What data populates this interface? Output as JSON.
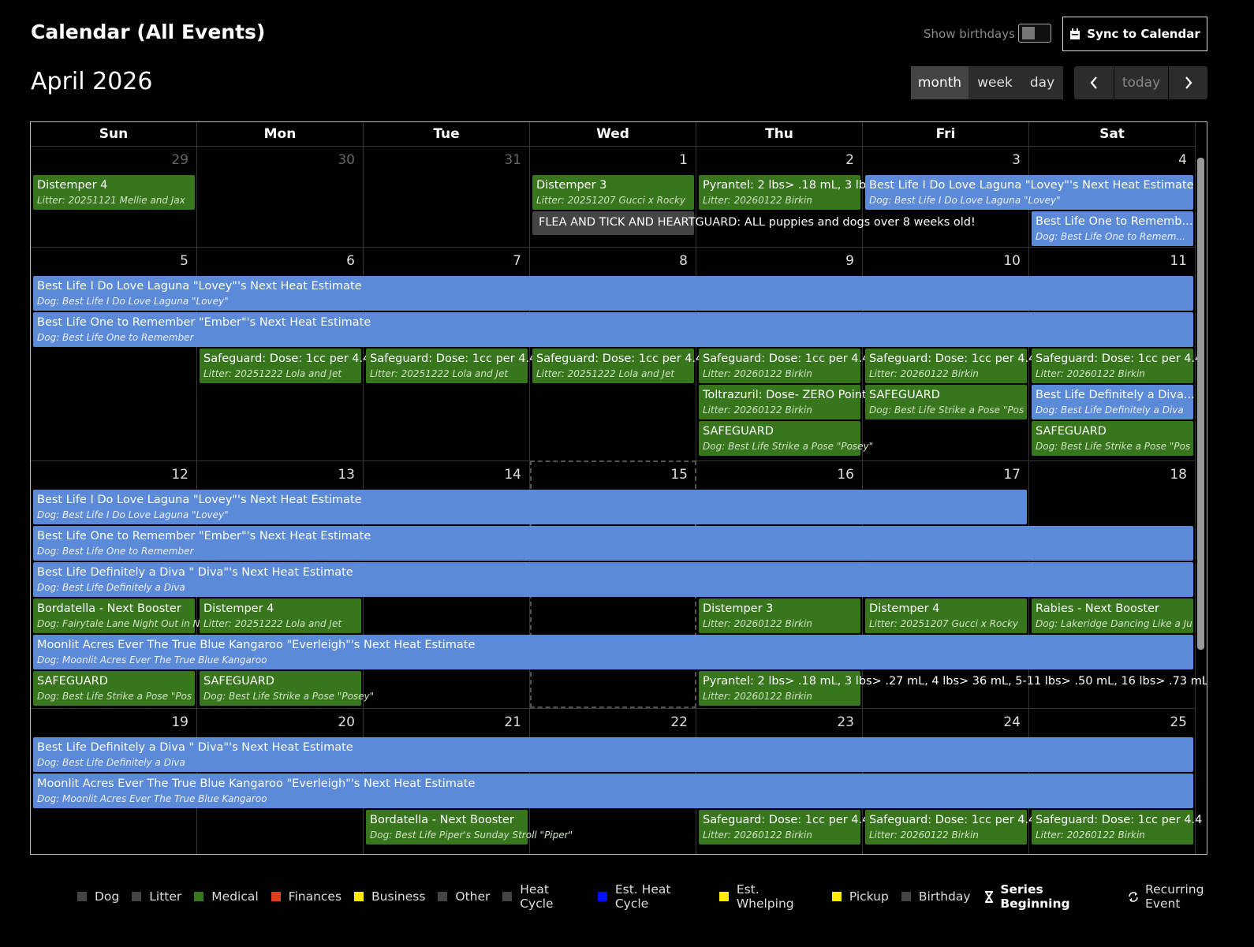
{
  "header": {
    "title": "Calendar (All Events)",
    "show_birthdays": "Show birthdays",
    "sync": "Sync to Calendar"
  },
  "toolbar": {
    "title": "April 2026",
    "views": [
      "month",
      "week",
      "day"
    ],
    "today": "today"
  },
  "calendar": {
    "weekdays": [
      "Sun",
      "Mon",
      "Tue",
      "Wed",
      "Thu",
      "Fri",
      "Sat"
    ],
    "weeks": [
      {
        "days": [
          29,
          30,
          31,
          1,
          2,
          3,
          4
        ],
        "events": [
          {
            "title": "Distemper 4",
            "subtitle": "Litter: 20251121 Mellie and Jax"
          },
          {
            "title": "Distemper 3",
            "subtitle": "Litter: 20251207 Gucci x Rocky"
          },
          {
            "title": "Pyrantel: 2 lbs> .18 mL, 3 lbs",
            "subtitle": "Litter: 20260122 Birkin"
          },
          {
            "title": "Best Life I Do Love Laguna \"Lovey\"'s Next Heat Estimate",
            "subtitle": "Dog: Best Life I Do Love Laguna \"Lovey\""
          },
          {
            "title": "FLEA AND TICK AND HEARTGUARD: ALL puppies and dogs over 8 weeks old!"
          },
          {
            "title": "Best Life One to Rememb...",
            "subtitle": "Dog: Best Life One to Remem..."
          }
        ]
      },
      {
        "days": [
          5,
          6,
          7,
          8,
          9,
          10,
          11
        ],
        "events": [
          {
            "title": "Best Life I Do Love Laguna \"Lovey\"'s Next Heat Estimate",
            "subtitle": "Dog: Best Life I Do Love Laguna \"Lovey\""
          },
          {
            "title": "Best Life One to Remember \"Ember\"'s Next Heat Estimate",
            "subtitle": "Dog: Best Life One to Remember"
          },
          {
            "title": "Safeguard: Dose: 1cc per 4.4",
            "subtitle": "Litter: 20251222 Lola and Jet"
          },
          {
            "title": "Safeguard: Dose: 1cc per 4.4",
            "subtitle": "Litter: 20251222 Lola and Jet"
          },
          {
            "title": "Safeguard: Dose: 1cc per 4.4",
            "subtitle": "Litter: 20251222 Lola and Jet"
          },
          {
            "title": "Safeguard: Dose: 1cc per 4.4",
            "subtitle": "Litter: 20260122 Birkin"
          },
          {
            "title": "Safeguard: Dose: 1cc per 4.4",
            "subtitle": "Litter: 20260122 Birkin"
          },
          {
            "title": "Safeguard: Dose: 1cc per 4.4",
            "subtitle": "Litter: 20260122 Birkin"
          },
          {
            "title": "Toltrazuril: Dose- ZERO Point",
            "subtitle": "Litter: 20260122 Birkin"
          },
          {
            "title": "SAFEGUARD",
            "subtitle": "Dog: Best Life Strike a Pose \"Pos"
          },
          {
            "title": "Best Life Definitely a Diva...",
            "subtitle": "Dog: Best Life Definitely a Diva"
          },
          {
            "title": "SAFEGUARD",
            "subtitle": "Dog: Best Life Strike a Pose \"Posey\""
          },
          {
            "title": "SAFEGUARD",
            "subtitle": "Dog: Best Life Strike a Pose \"Pos"
          }
        ]
      },
      {
        "days": [
          12,
          13,
          14,
          15,
          16,
          17,
          18
        ],
        "events": [
          {
            "title": "Best Life I Do Love Laguna \"Lovey\"'s Next Heat Estimate",
            "subtitle": "Dog: Best Life I Do Love Laguna \"Lovey\""
          },
          {
            "title": "Best Life One to Remember \"Ember\"'s Next Heat Estimate",
            "subtitle": "Dog: Best Life One to Remember"
          },
          {
            "title": "Best Life Definitely a Diva \" Diva\"'s Next Heat Estimate",
            "subtitle": "Dog: Best Life Definitely a Diva"
          },
          {
            "title": "Bordatella - Next Booster",
            "subtitle": "Dog: Fairytale Lane Night Out in N"
          },
          {
            "title": "Distemper 4",
            "subtitle": "Litter: 20251222 Lola and Jet"
          },
          {
            "title": "Distemper 3",
            "subtitle": "Litter: 20260122 Birkin"
          },
          {
            "title": "Distemper 4",
            "subtitle": "Litter: 20251207 Gucci x Rocky"
          },
          {
            "title": "Rabies - Next Booster",
            "subtitle": "Dog: Lakeridge Dancing Like a Ju"
          },
          {
            "title": "Moonlit Acres Ever The True Blue Kangaroo \"Everleigh\"'s Next Heat Estimate",
            "subtitle": "Dog: Moonlit Acres Ever The True Blue Kangaroo"
          },
          {
            "title": "SAFEGUARD",
            "subtitle": "Dog: Best Life Strike a Pose \"Pos"
          },
          {
            "title": "SAFEGUARD",
            "subtitle": "Dog: Best Life Strike a Pose \"Posey\""
          },
          {
            "title": "Pyrantel: 2 lbs> .18 mL, 3 lbs> .27 mL, 4 lbs> 36 mL, 5-11 lbs> .50 mL, 16 lbs> .73 mL",
            "subtitle": "Litter: 20260122 Birkin"
          }
        ]
      },
      {
        "days": [
          19,
          20,
          21,
          22,
          23,
          24,
          25
        ],
        "events": [
          {
            "title": "Best Life Definitely a Diva \" Diva\"'s Next Heat Estimate",
            "subtitle": "Dog: Best Life Definitely a Diva"
          },
          {
            "title": "Moonlit Acres Ever The True Blue Kangaroo \"Everleigh\"'s Next Heat Estimate",
            "subtitle": "Dog: Moonlit Acres Ever The True Blue Kangaroo"
          },
          {
            "title": "Bordatella - Next Booster",
            "subtitle": "Dog: Best Life Piper's Sunday Stroll \"Piper\""
          },
          {
            "title": "Safeguard: Dose: 1cc per 4.4",
            "subtitle": "Litter: 20260122 Birkin"
          },
          {
            "title": "Safeguard: Dose: 1cc per 4.4",
            "subtitle": "Litter: 20260122 Birkin"
          },
          {
            "title": "Safeguard: Dose: 1cc per 4.4",
            "subtitle": "Litter: 20260122 Birkin"
          }
        ]
      }
    ]
  },
  "legend": {
    "items": [
      "Dog",
      "Litter",
      "Medical",
      "Finances",
      "Business",
      "Other",
      "Heat Cycle",
      "Est. Heat Cycle",
      "Est. Whelping",
      "Pickup",
      "Birthday",
      "Series Beginning",
      "Recurring Event"
    ]
  }
}
